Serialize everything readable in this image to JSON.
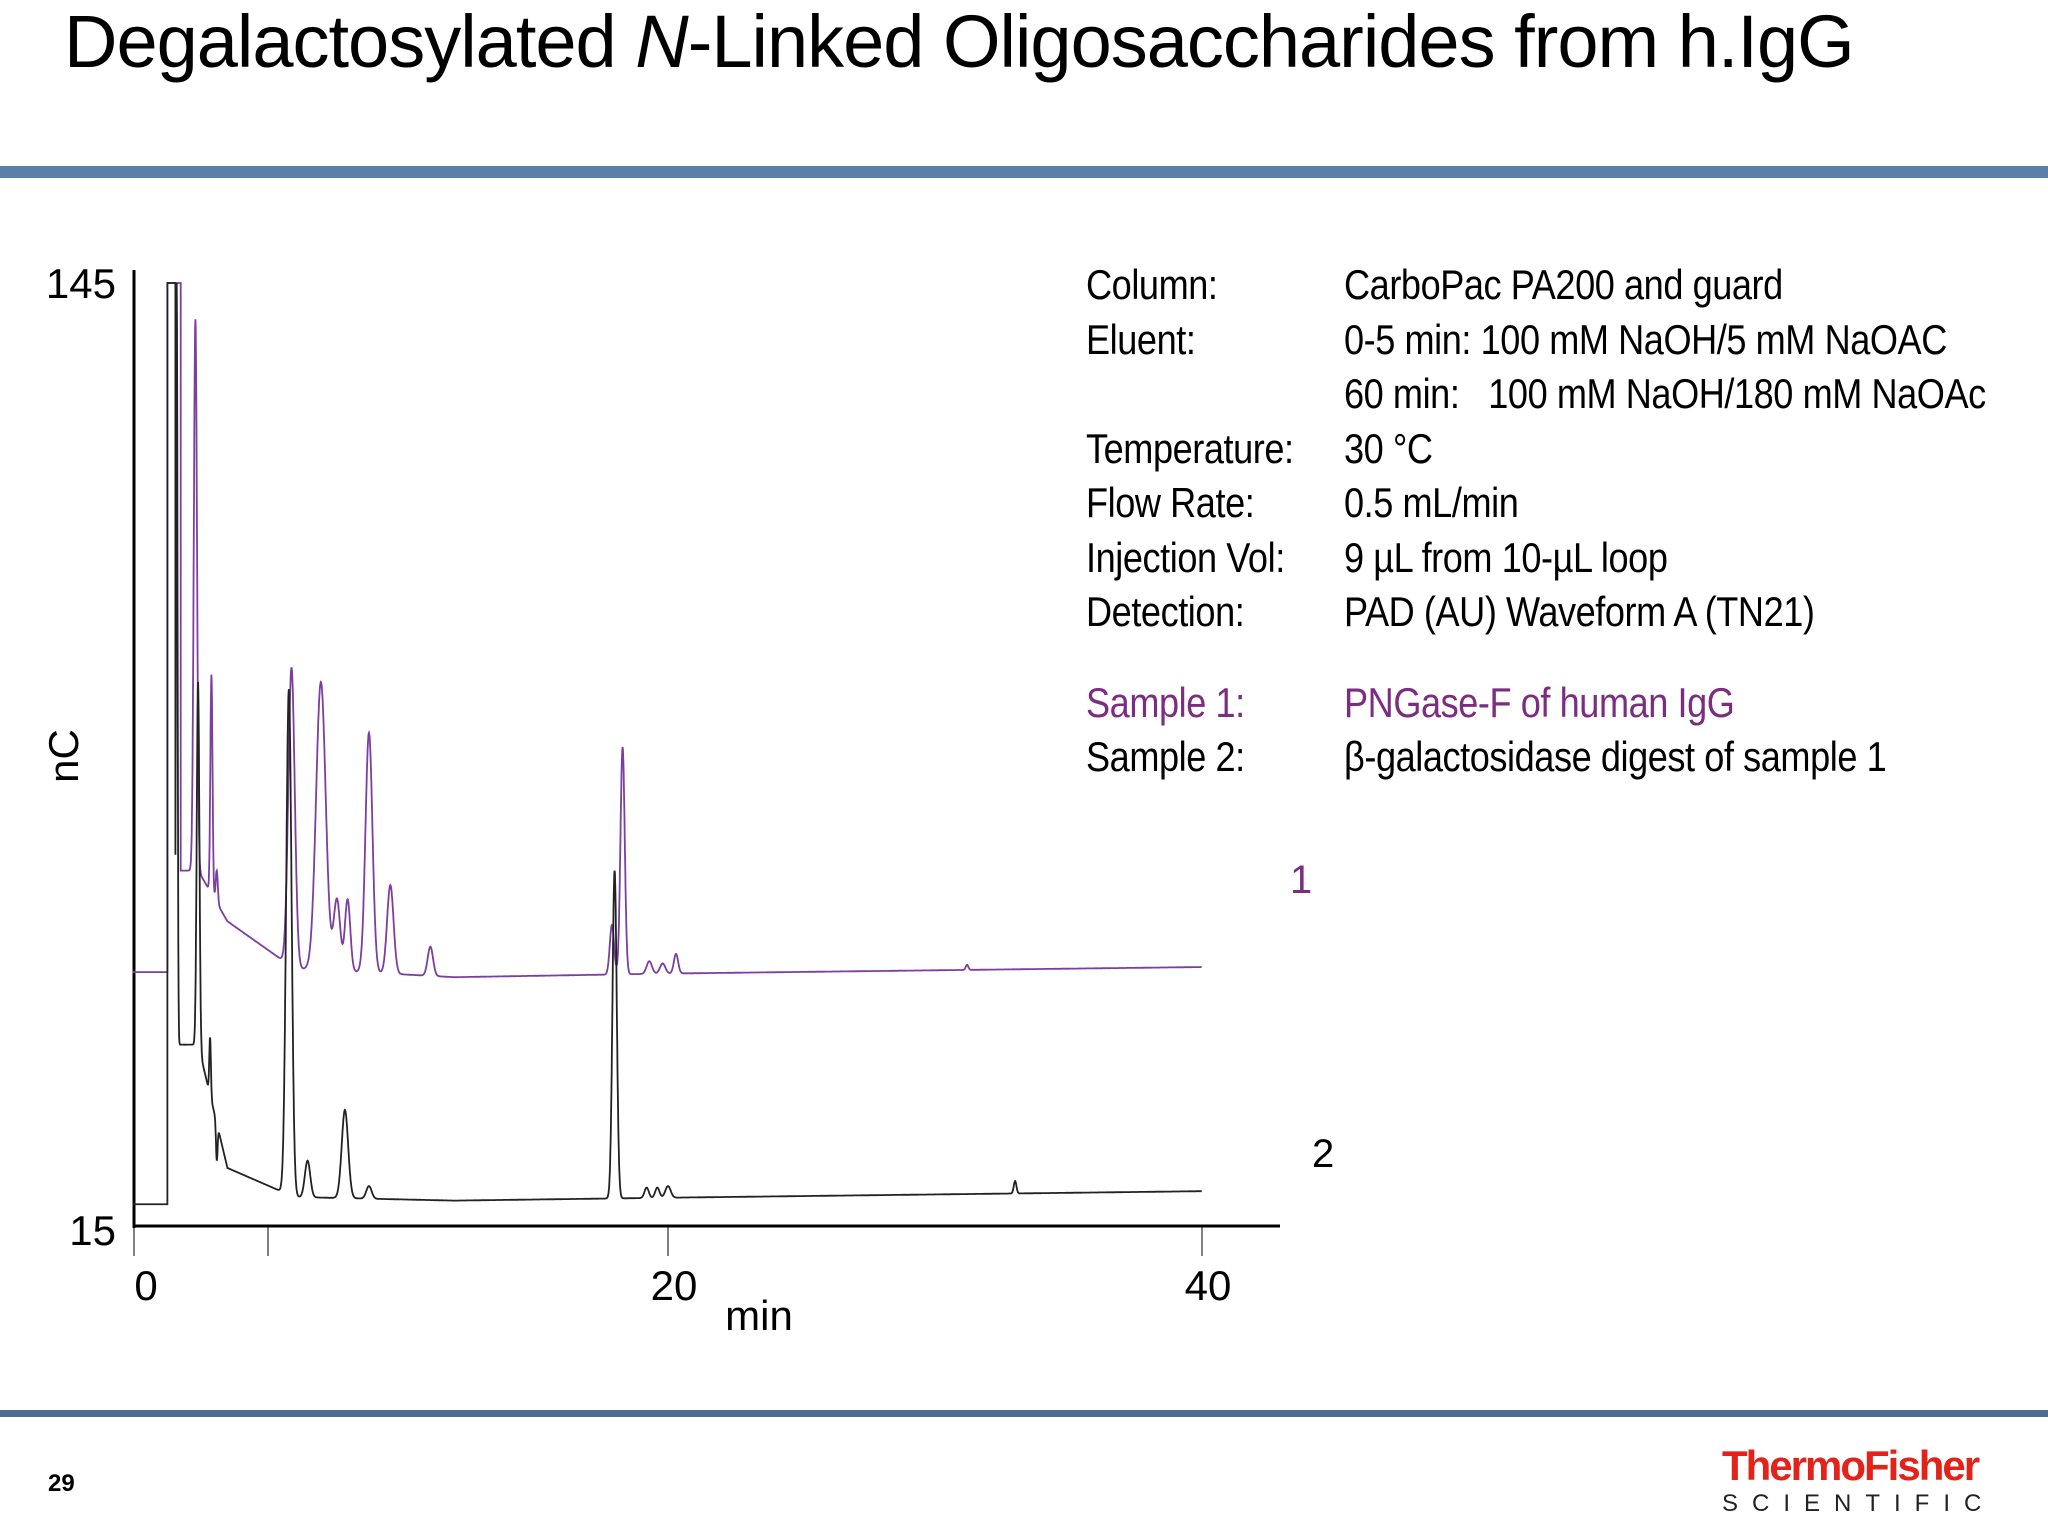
{
  "slide": {
    "title_prefix": "Degalactosylated ",
    "title_italic": "N",
    "title_suffix": "-Linked Oligosaccharides from h.IgG",
    "page_number": "29",
    "logo": {
      "brand": "ThermoFisher",
      "sub": "SCIENTIFIC"
    },
    "colors": {
      "header_rule": "#5b80a8",
      "footer_rule": "#4f6d90",
      "sample1": "#7b3fa0",
      "sample2": "#222222",
      "logo_red": "#e2231a"
    }
  },
  "conditions": [
    {
      "key": "Column:",
      "value": "CarboPac PA200 and guard"
    },
    {
      "key": "Eluent:",
      "value": "0-5 min: 100 mM NaOH/5 mM NaOAC"
    },
    {
      "key": "",
      "value": "60 min:   100 mM NaOH/180 mM NaOAc"
    },
    {
      "key": "Temperature:",
      "value": "30 °C"
    },
    {
      "key": "Flow Rate:",
      "value": "0.5 mL/min"
    },
    {
      "key": "Injection Vol:",
      "value": "9 µL from 10-µL loop"
    },
    {
      "key": "Detection:",
      "value": "PAD (AU) Waveform A (TN21)"
    }
  ],
  "samples": [
    {
      "key": "Sample 1:",
      "value": "PNGase-F of human IgG"
    },
    {
      "key": "Sample 2:",
      "value": "β-galactosidase digest of sample 1"
    }
  ],
  "chart_data": {
    "type": "line",
    "title": "",
    "xlabel": "min",
    "ylabel": "nC",
    "xlim": [
      0,
      42
    ],
    "ylim": [
      15,
      145
    ],
    "x_ticks": [
      0,
      20,
      40
    ],
    "x_minor_ticks": [
      5
    ],
    "y_ticks": [
      15,
      145
    ],
    "grid": false,
    "legend": "inline trace labels",
    "series": [
      {
        "name": "1",
        "label": "Sample 1: PNGase-F of human IgG",
        "color": "#7b3fa0",
        "pre_injection_level": 50,
        "baseline": [
          [
            2.4,
            64
          ],
          [
            3.5,
            57
          ],
          [
            6,
            50.5
          ],
          [
            12,
            49.3
          ],
          [
            20,
            49.8
          ],
          [
            40,
            50.7
          ]
        ],
        "peaks": [
          {
            "t": 2.3,
            "h": 140,
            "w": 0.06
          },
          {
            "t": 2.9,
            "h": 91,
            "w": 0.04
          },
          {
            "t": 3.1,
            "h": 64,
            "w": 0.04
          },
          {
            "t": 5.9,
            "h": 92,
            "w": 0.12
          },
          {
            "t": 7.0,
            "h": 90,
            "w": 0.18
          },
          {
            "t": 7.6,
            "h": 60,
            "w": 0.12
          },
          {
            "t": 8.0,
            "h": 60,
            "w": 0.1
          },
          {
            "t": 8.8,
            "h": 83,
            "w": 0.13
          },
          {
            "t": 9.6,
            "h": 62,
            "w": 0.12
          },
          {
            "t": 11.1,
            "h": 53.5,
            "w": 0.1
          },
          {
            "t": 17.9,
            "h": 56.5,
            "w": 0.08
          },
          {
            "t": 18.3,
            "h": 81,
            "w": 0.08
          },
          {
            "t": 19.3,
            "h": 51.5,
            "w": 0.1
          },
          {
            "t": 19.8,
            "h": 51.2,
            "w": 0.1
          },
          {
            "t": 20.3,
            "h": 52.5,
            "w": 0.08
          },
          {
            "t": 31.2,
            "h": 51,
            "w": 0.05
          }
        ]
      },
      {
        "name": "2",
        "label": "Sample 2: β-galactosidase digest of sample 1",
        "color": "#222222",
        "pre_injection_level": 18,
        "baseline": [
          [
            2.4,
            40
          ],
          [
            3.5,
            23
          ],
          [
            6,
            19
          ],
          [
            12,
            18.5
          ],
          [
            20,
            18.9
          ],
          [
            40,
            19.8
          ]
        ],
        "peaks": [
          {
            "t": 1.6,
            "h": 145,
            "w": 0.03
          },
          {
            "t": 2.4,
            "h": 90,
            "w": 0.05
          },
          {
            "t": 2.85,
            "h": 41,
            "w": 0.03
          },
          {
            "t": 3.1,
            "h": 24,
            "w": 0.03
          },
          {
            "t": 5.8,
            "h": 89,
            "w": 0.1
          },
          {
            "t": 6.5,
            "h": 24,
            "w": 0.1
          },
          {
            "t": 7.9,
            "h": 31,
            "w": 0.12
          },
          {
            "t": 8.8,
            "h": 20.5,
            "w": 0.1
          },
          {
            "t": 18.0,
            "h": 64,
            "w": 0.08
          },
          {
            "t": 19.2,
            "h": 20.3,
            "w": 0.08
          },
          {
            "t": 19.6,
            "h": 20.3,
            "w": 0.08
          },
          {
            "t": 20.0,
            "h": 20.5,
            "w": 0.1
          },
          {
            "t": 33.0,
            "h": 21.2,
            "w": 0.05
          }
        ]
      }
    ],
    "trace_labels": [
      {
        "text": "1",
        "color": "#7b2d80"
      },
      {
        "text": "2",
        "color": "#000000"
      }
    ]
  },
  "axes": {
    "y_max_label": "145",
    "y_min_label": "15",
    "x_labels": [
      "0",
      "20",
      "40"
    ],
    "x_title": "min",
    "y_title": "nC"
  }
}
